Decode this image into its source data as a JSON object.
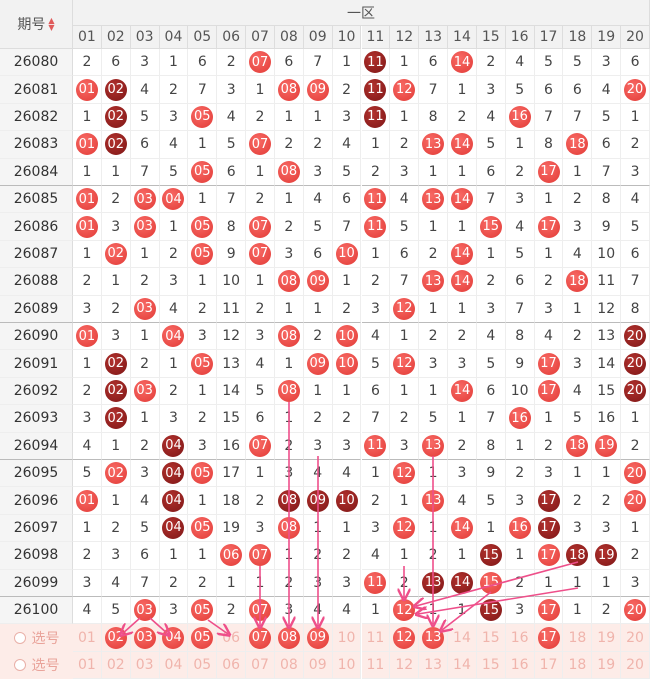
{
  "header": {
    "period_label": "期号",
    "zone_label": "一区",
    "columns": [
      "01",
      "02",
      "03",
      "04",
      "05",
      "06",
      "07",
      "08",
      "09",
      "10",
      "11",
      "12",
      "13",
      "14",
      "15",
      "16",
      "17",
      "18",
      "19",
      "20"
    ]
  },
  "rows": [
    {
      "period": "26080",
      "cells": [
        2,
        6,
        3,
        1,
        6,
        2,
        {
          "ball": "07"
        },
        6,
        7,
        1,
        {
          "ball": "11",
          "dark": true
        },
        1,
        6,
        {
          "ball": "14"
        },
        2,
        4,
        5,
        5,
        3,
        6
      ]
    },
    {
      "period": "26081",
      "cells": [
        {
          "ball": "01"
        },
        {
          "ball": "02",
          "dark": true
        },
        4,
        2,
        7,
        3,
        1,
        {
          "ball": "08"
        },
        {
          "ball": "09"
        },
        2,
        {
          "ball": "11",
          "dark": true
        },
        {
          "ball": "12"
        },
        7,
        1,
        3,
        5,
        6,
        6,
        4,
        {
          "ball": "20"
        }
      ]
    },
    {
      "period": "26082",
      "cells": [
        1,
        {
          "ball": "02",
          "dark": true
        },
        5,
        3,
        {
          "ball": "05"
        },
        4,
        2,
        1,
        1,
        3,
        {
          "ball": "11",
          "dark": true
        },
        1,
        8,
        2,
        4,
        {
          "ball": "16"
        },
        7,
        7,
        5,
        1
      ]
    },
    {
      "period": "26083",
      "cells": [
        {
          "ball": "01"
        },
        {
          "ball": "02",
          "dark": true
        },
        6,
        4,
        1,
        5,
        {
          "ball": "07"
        },
        2,
        2,
        4,
        1,
        2,
        {
          "ball": "13"
        },
        {
          "ball": "14"
        },
        5,
        1,
        8,
        {
          "ball": "18"
        },
        6,
        2
      ]
    },
    {
      "period": "26084",
      "cells": [
        1,
        1,
        7,
        5,
        {
          "ball": "05"
        },
        6,
        1,
        {
          "ball": "08"
        },
        3,
        5,
        2,
        3,
        1,
        1,
        6,
        2,
        {
          "ball": "17"
        },
        1,
        7,
        3
      ]
    },
    {
      "period": "26085",
      "cells": [
        {
          "ball": "01"
        },
        2,
        {
          "ball": "03"
        },
        {
          "ball": "04"
        },
        1,
        7,
        2,
        1,
        4,
        6,
        {
          "ball": "11"
        },
        4,
        {
          "ball": "13"
        },
        {
          "ball": "14"
        },
        7,
        3,
        1,
        2,
        8,
        4
      ]
    },
    {
      "period": "26086",
      "cells": [
        {
          "ball": "01"
        },
        3,
        {
          "ball": "03"
        },
        1,
        {
          "ball": "05"
        },
        8,
        {
          "ball": "07"
        },
        2,
        5,
        7,
        {
          "ball": "11"
        },
        5,
        1,
        1,
        {
          "ball": "15"
        },
        4,
        {
          "ball": "17"
        },
        3,
        9,
        5
      ]
    },
    {
      "period": "26087",
      "cells": [
        1,
        {
          "ball": "02"
        },
        1,
        2,
        {
          "ball": "05"
        },
        9,
        {
          "ball": "07"
        },
        3,
        6,
        {
          "ball": "10"
        },
        1,
        6,
        2,
        {
          "ball": "14"
        },
        1,
        5,
        1,
        4,
        10,
        6
      ]
    },
    {
      "period": "26088",
      "cells": [
        2,
        1,
        2,
        3,
        1,
        10,
        1,
        {
          "ball": "08"
        },
        {
          "ball": "09"
        },
        1,
        2,
        7,
        {
          "ball": "13"
        },
        {
          "ball": "14"
        },
        2,
        6,
        2,
        {
          "ball": "18"
        },
        11,
        7
      ]
    },
    {
      "period": "26089",
      "cells": [
        3,
        2,
        {
          "ball": "03"
        },
        4,
        2,
        11,
        2,
        1,
        1,
        2,
        3,
        {
          "ball": "12"
        },
        1,
        1,
        3,
        7,
        3,
        1,
        12,
        8
      ]
    },
    {
      "period": "26090",
      "cells": [
        {
          "ball": "01"
        },
        3,
        1,
        {
          "ball": "04"
        },
        3,
        12,
        3,
        {
          "ball": "08"
        },
        2,
        {
          "ball": "10"
        },
        4,
        1,
        2,
        2,
        4,
        8,
        4,
        2,
        13,
        {
          "ball": "20",
          "dark": true
        }
      ]
    },
    {
      "period": "26091",
      "cells": [
        1,
        {
          "ball": "02",
          "dark": true
        },
        2,
        1,
        {
          "ball": "05"
        },
        13,
        4,
        1,
        {
          "ball": "09"
        },
        {
          "ball": "10"
        },
        5,
        {
          "ball": "12"
        },
        3,
        3,
        5,
        9,
        {
          "ball": "17"
        },
        3,
        14,
        {
          "ball": "20",
          "dark": true
        }
      ]
    },
    {
      "period": "26092",
      "cells": [
        2,
        {
          "ball": "02",
          "dark": true
        },
        {
          "ball": "03"
        },
        2,
        1,
        14,
        5,
        {
          "ball": "08"
        },
        1,
        1,
        6,
        1,
        1,
        {
          "ball": "14"
        },
        6,
        10,
        {
          "ball": "17"
        },
        4,
        15,
        {
          "ball": "20",
          "dark": true
        }
      ]
    },
    {
      "period": "26093",
      "cells": [
        3,
        {
          "ball": "02",
          "dark": true
        },
        1,
        3,
        2,
        15,
        6,
        1,
        2,
        2,
        7,
        2,
        5,
        1,
        7,
        {
          "ball": "16"
        },
        1,
        5,
        16,
        1
      ]
    },
    {
      "period": "26094",
      "cells": [
        4,
        1,
        2,
        {
          "ball": "04",
          "dark": true
        },
        3,
        16,
        {
          "ball": "07"
        },
        2,
        3,
        3,
        {
          "ball": "11"
        },
        3,
        {
          "ball": "13"
        },
        2,
        8,
        1,
        2,
        {
          "ball": "18"
        },
        {
          "ball": "19"
        },
        2
      ]
    },
    {
      "period": "26095",
      "cells": [
        5,
        {
          "ball": "02"
        },
        3,
        {
          "ball": "04",
          "dark": true
        },
        {
          "ball": "05"
        },
        17,
        1,
        3,
        4,
        4,
        1,
        {
          "ball": "12"
        },
        1,
        3,
        9,
        2,
        3,
        1,
        1,
        {
          "ball": "20"
        }
      ]
    },
    {
      "period": "26096",
      "cells": [
        {
          "ball": "01"
        },
        1,
        4,
        {
          "ball": "04",
          "dark": true
        },
        1,
        18,
        2,
        {
          "ball": "08",
          "dark": true
        },
        {
          "ball": "09",
          "dark": true
        },
        {
          "ball": "10",
          "dark": true
        },
        2,
        1,
        {
          "ball": "13"
        },
        4,
        5,
        3,
        {
          "ball": "17",
          "dark": true
        },
        2,
        2,
        {
          "ball": "20"
        }
      ]
    },
    {
      "period": "26097",
      "cells": [
        1,
        2,
        5,
        {
          "ball": "04",
          "dark": true
        },
        {
          "ball": "05"
        },
        19,
        3,
        {
          "ball": "08"
        },
        1,
        1,
        3,
        {
          "ball": "12"
        },
        1,
        {
          "ball": "14"
        },
        1,
        {
          "ball": "16"
        },
        {
          "ball": "17",
          "dark": true
        },
        3,
        3,
        1
      ]
    },
    {
      "period": "26098",
      "cells": [
        2,
        3,
        6,
        1,
        1,
        {
          "ball": "06"
        },
        {
          "ball": "07"
        },
        1,
        2,
        2,
        4,
        1,
        2,
        1,
        {
          "ball": "15",
          "dark": true
        },
        1,
        {
          "ball": "17"
        },
        {
          "ball": "18",
          "dark": true
        },
        {
          "ball": "19",
          "dark": true
        },
        2
      ]
    },
    {
      "period": "26099",
      "cells": [
        3,
        4,
        7,
        2,
        2,
        1,
        1,
        2,
        3,
        3,
        {
          "ball": "11"
        },
        2,
        {
          "ball": "13",
          "dark": true
        },
        {
          "ball": "14",
          "dark": true
        },
        {
          "ball": "15"
        },
        2,
        1,
        1,
        1,
        3
      ]
    },
    {
      "period": "26100",
      "cells": [
        4,
        5,
        {
          "ball": "03"
        },
        3,
        {
          "ball": "05"
        },
        2,
        {
          "ball": "07"
        },
        3,
        4,
        4,
        1,
        {
          "ball": "12"
        },
        1,
        1,
        {
          "ball": "15",
          "dark": true
        },
        3,
        {
          "ball": "17"
        },
        1,
        2,
        {
          "ball": "20"
        }
      ]
    }
  ],
  "select_rows": [
    {
      "label": "选号",
      "cells": [
        "01",
        {
          "ball": "02"
        },
        {
          "ball": "03"
        },
        {
          "ball": "04"
        },
        {
          "ball": "05"
        },
        "06",
        {
          "ball": "07"
        },
        {
          "ball": "08"
        },
        {
          "ball": "09"
        },
        "10",
        "11",
        {
          "ball": "12"
        },
        {
          "ball": "13"
        },
        "14",
        "15",
        "16",
        {
          "ball": "17"
        },
        "18",
        "19",
        "20"
      ]
    },
    {
      "label": "选号",
      "cells": [
        "01",
        "02",
        "03",
        "04",
        "05",
        "06",
        "07",
        "08",
        "09",
        "10",
        "11",
        "12",
        "13",
        "14",
        "15",
        "16",
        "17",
        "18",
        "19",
        "20"
      ]
    }
  ]
}
